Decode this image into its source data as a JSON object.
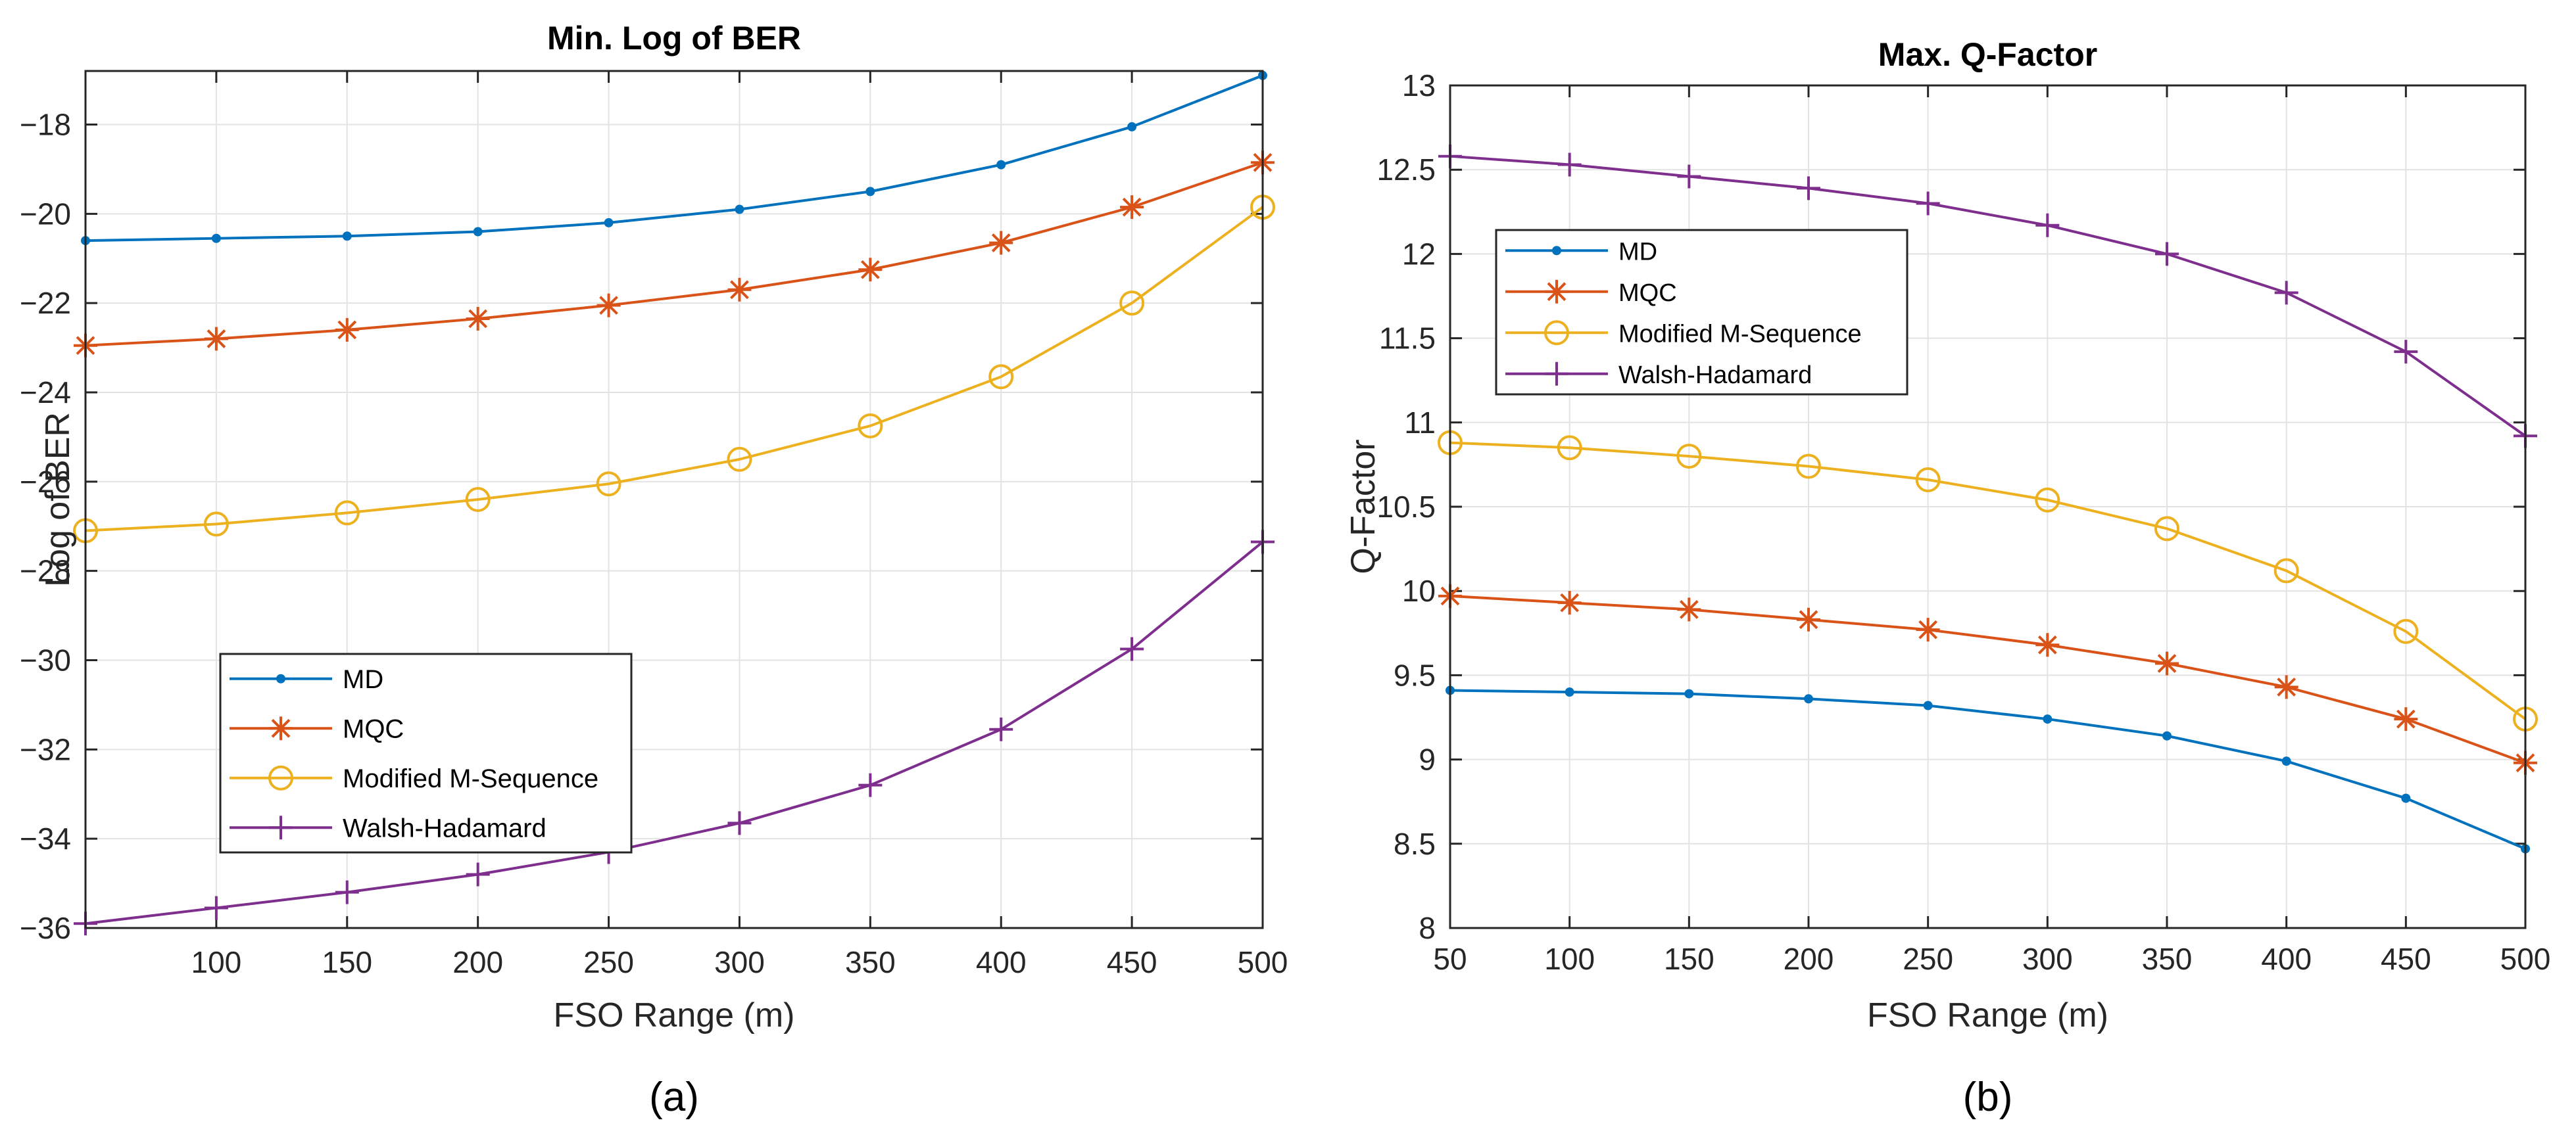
{
  "chart_data": [
    {
      "type": "line",
      "panel_label": "(a)",
      "title": "Min. Log of BER",
      "xlabel": "FSO Range (m)",
      "ylabel": "Log of BER",
      "x": [
        50,
        100,
        150,
        200,
        250,
        300,
        350,
        400,
        450,
        500
      ],
      "xlim": [
        50,
        500
      ],
      "ylim": [
        -36,
        -16.8
      ],
      "xticks": [
        100,
        150,
        200,
        250,
        300,
        350,
        400,
        450,
        500
      ],
      "yticks": [
        -18,
        -20,
        -22,
        -24,
        -26,
        -28,
        -30,
        -32,
        -34,
        -36
      ],
      "grid": true,
      "legend_position": "lower-left",
      "series": [
        {
          "name": "MD",
          "marker": "dot",
          "color": "#0072BD",
          "values": [
            -20.6,
            -20.55,
            -20.5,
            -20.4,
            -20.2,
            -19.9,
            -19.5,
            -18.9,
            -18.05,
            -16.9
          ]
        },
        {
          "name": "MQC",
          "marker": "star",
          "color": "#D95319",
          "values": [
            -22.95,
            -22.8,
            -22.6,
            -22.35,
            -22.05,
            -21.7,
            -21.25,
            -20.65,
            -19.85,
            -18.85
          ]
        },
        {
          "name": "Modified M-Sequence",
          "marker": "circle",
          "color": "#EDB120",
          "values": [
            -27.1,
            -26.95,
            -26.7,
            -26.4,
            -26.05,
            -25.5,
            -24.75,
            -23.65,
            -22.0,
            -19.85
          ]
        },
        {
          "name": "Walsh-Hadamard",
          "marker": "plus",
          "color": "#7E2F8E",
          "values": [
            -35.9,
            -35.55,
            -35.2,
            -34.8,
            -34.3,
            -33.65,
            -32.8,
            -31.55,
            -29.75,
            -27.35
          ]
        }
      ]
    },
    {
      "type": "line",
      "panel_label": "(b)",
      "title": "Max. Q-Factor",
      "xlabel": "FSO Range (m)",
      "ylabel": "Q-Factor",
      "x": [
        50,
        100,
        150,
        200,
        250,
        300,
        350,
        400,
        450,
        500
      ],
      "xlim": [
        50,
        500
      ],
      "ylim": [
        8,
        13
      ],
      "xticks": [
        50,
        100,
        150,
        200,
        250,
        300,
        350,
        400,
        450,
        500
      ],
      "yticks": [
        8,
        8.5,
        9,
        9.5,
        10,
        10.5,
        11,
        11.5,
        12,
        12.5,
        13
      ],
      "grid": true,
      "legend_position": "upper-left",
      "series": [
        {
          "name": "MD",
          "marker": "dot",
          "color": "#0072BD",
          "values": [
            9.41,
            9.4,
            9.39,
            9.36,
            9.32,
            9.24,
            9.14,
            8.99,
            8.77,
            8.47
          ]
        },
        {
          "name": "MQC",
          "marker": "star",
          "color": "#D95319",
          "values": [
            9.97,
            9.93,
            9.89,
            9.83,
            9.77,
            9.68,
            9.57,
            9.43,
            9.24,
            8.98
          ]
        },
        {
          "name": "Modified M-Sequence",
          "marker": "circle",
          "color": "#EDB120",
          "values": [
            10.88,
            10.85,
            10.8,
            10.74,
            10.66,
            10.54,
            10.37,
            10.12,
            9.76,
            9.24
          ]
        },
        {
          "name": "Walsh-Hadamard",
          "marker": "plus",
          "color": "#7E2F8E",
          "values": [
            12.58,
            12.53,
            12.46,
            12.39,
            12.3,
            12.17,
            12.0,
            11.77,
            11.42,
            10.92
          ]
        }
      ]
    }
  ]
}
